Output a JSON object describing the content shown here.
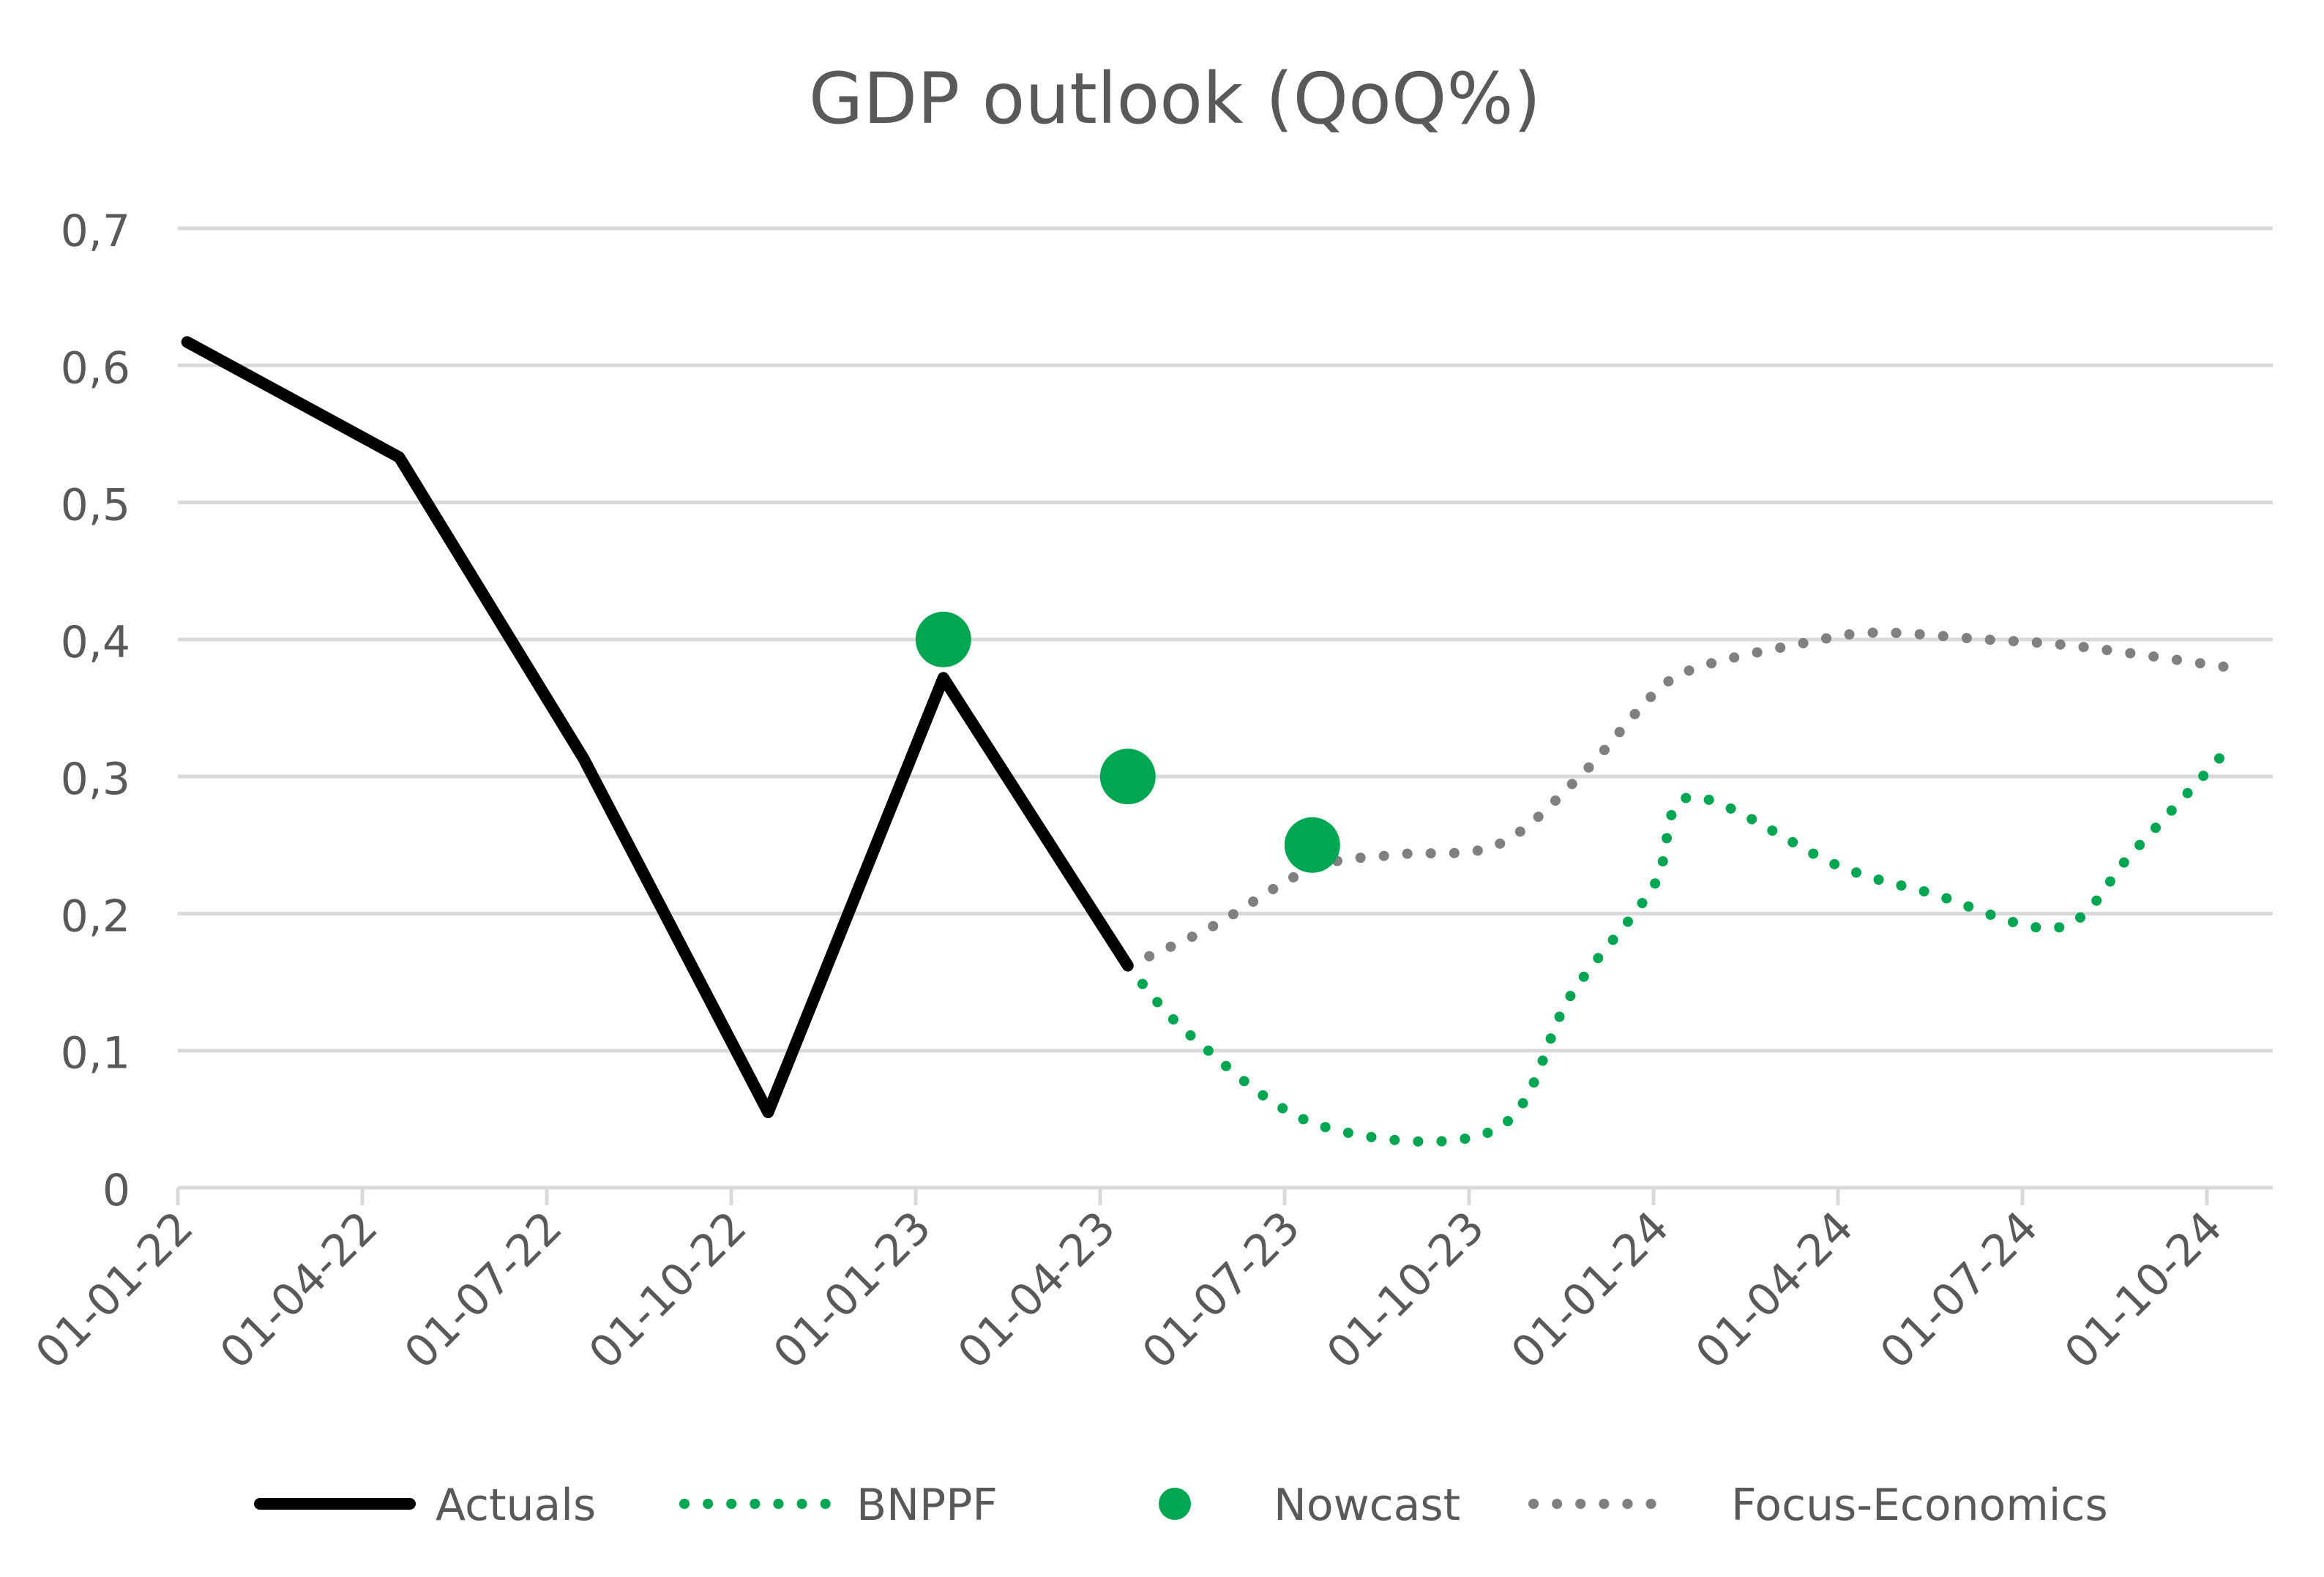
{
  "chart_data": {
    "type": "line",
    "title": "GDP outlook (QoQ%)",
    "xlabel": "",
    "ylabel": "",
    "ylim": [
      0,
      0.7
    ],
    "y_ticks": [
      0,
      0.1,
      0.2,
      0.3,
      0.4,
      0.5,
      0.6,
      0.7
    ],
    "y_tick_labels": [
      "0",
      "0,1",
      "0,2",
      "0,3",
      "0,4",
      "0,5",
      "0,6",
      "0,7"
    ],
    "categories": [
      "01-01-22",
      "01-04-22",
      "01-07-22",
      "01-10-22",
      "01-01-23",
      "01-04-23",
      "01-07-23",
      "01-10-23",
      "01-01-24",
      "01-04-24",
      "01-07-24",
      "01-10-24"
    ],
    "grid": true,
    "legend_position": "bottom",
    "series": [
      {
        "name": "Actuals",
        "style": "solid-line",
        "color": "#000000",
        "points": [
          [
            0.05,
            0.617
          ],
          [
            1.2,
            0.533
          ],
          [
            2.2,
            0.313
          ],
          [
            3.2,
            0.055
          ],
          [
            4.15,
            0.372
          ],
          [
            5.15,
            0.162
          ]
        ]
      },
      {
        "name": "BNPPF",
        "style": "dotted-line",
        "color": "#00A651",
        "points": [
          [
            5.15,
            0.162
          ],
          [
            5.5,
            0.11
          ],
          [
            6.2,
            0.045
          ],
          [
            7.15,
            0.043
          ],
          [
            7.55,
            0.14
          ],
          [
            8.0,
            0.22
          ],
          [
            8.2,
            0.285
          ],
          [
            9.0,
            0.235
          ],
          [
            9.5,
            0.215
          ],
          [
            10.2,
            0.19
          ],
          [
            10.6,
            0.245
          ],
          [
            11.1,
            0.318
          ]
        ]
      },
      {
        "name": "Nowcast",
        "style": "marker",
        "color": "#00A651",
        "points": [
          [
            4.15,
            0.4
          ],
          [
            5.15,
            0.3
          ],
          [
            6.15,
            0.25
          ]
        ]
      },
      {
        "name": "Focus-Economics",
        "style": "dotted-line",
        "color": "#808080",
        "points": [
          [
            5.15,
            0.162
          ],
          [
            5.6,
            0.19
          ],
          [
            6.15,
            0.233
          ],
          [
            6.6,
            0.243
          ],
          [
            7.15,
            0.25
          ],
          [
            7.6,
            0.3
          ],
          [
            8.0,
            0.36
          ],
          [
            8.25,
            0.38
          ],
          [
            8.8,
            0.397
          ],
          [
            9.2,
            0.405
          ],
          [
            9.8,
            0.4
          ],
          [
            10.3,
            0.395
          ],
          [
            11.1,
            0.38
          ]
        ]
      }
    ]
  }
}
